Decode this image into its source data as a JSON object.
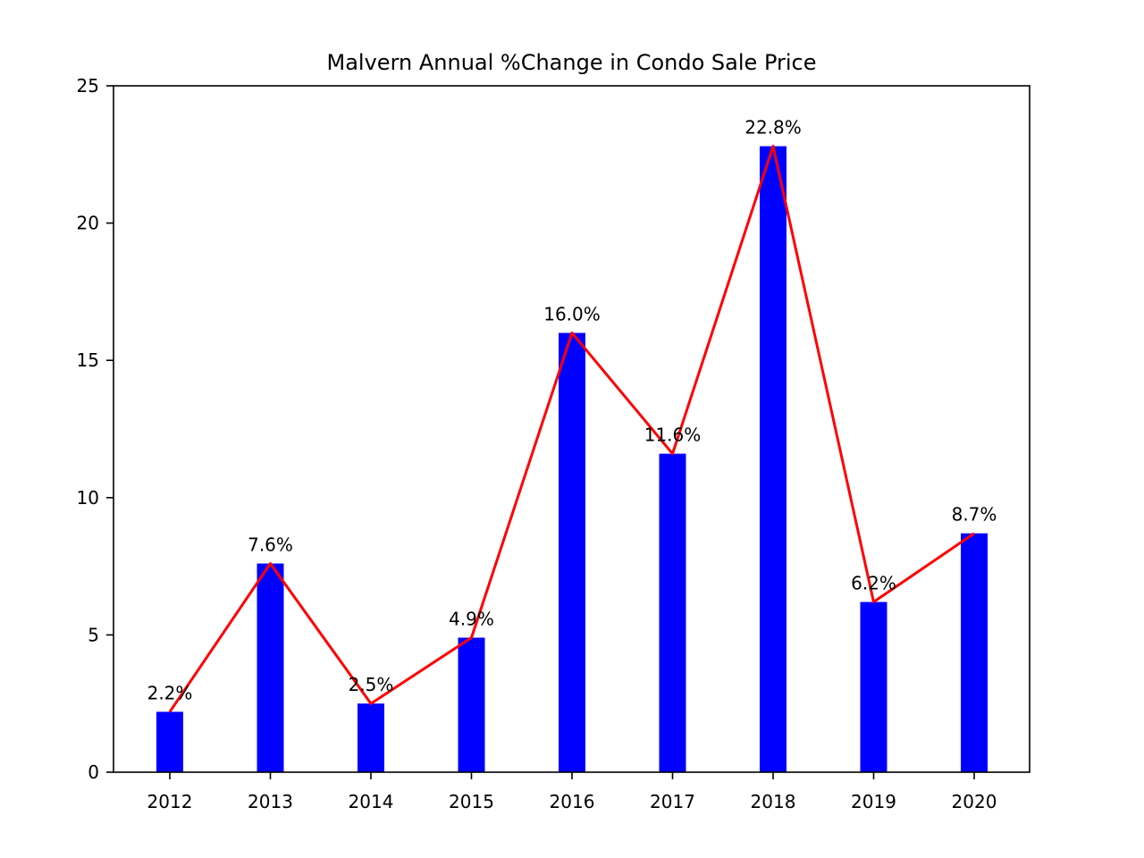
{
  "chart_data": {
    "type": "bar",
    "title": "Malvern Annual %Change in Condo Sale Price",
    "xlabel": "",
    "ylabel": "",
    "categories": [
      "2012",
      "2013",
      "2014",
      "2015",
      "2016",
      "2017",
      "2018",
      "2019",
      "2020"
    ],
    "values": [
      2.2,
      7.6,
      2.5,
      4.9,
      16.0,
      11.6,
      22.8,
      6.2,
      8.7
    ],
    "data_labels": [
      "2.2%",
      "7.6%",
      "2.5%",
      "4.9%",
      "16.0%",
      "11.6%",
      "22.8%",
      "6.2%",
      "8.7%"
    ],
    "overlay_line": {
      "type": "line",
      "values": [
        2.2,
        7.6,
        2.5,
        4.9,
        16.0,
        11.6,
        22.8,
        6.2,
        8.7
      ],
      "color": "#ff0000"
    },
    "ylim": [
      0,
      25
    ],
    "yticks": [
      0,
      5,
      10,
      15,
      20,
      25
    ],
    "grid": false,
    "legend": "none",
    "colors": {
      "bar": "#0000ff",
      "line": "#ff0000",
      "axes": "#000000"
    }
  }
}
